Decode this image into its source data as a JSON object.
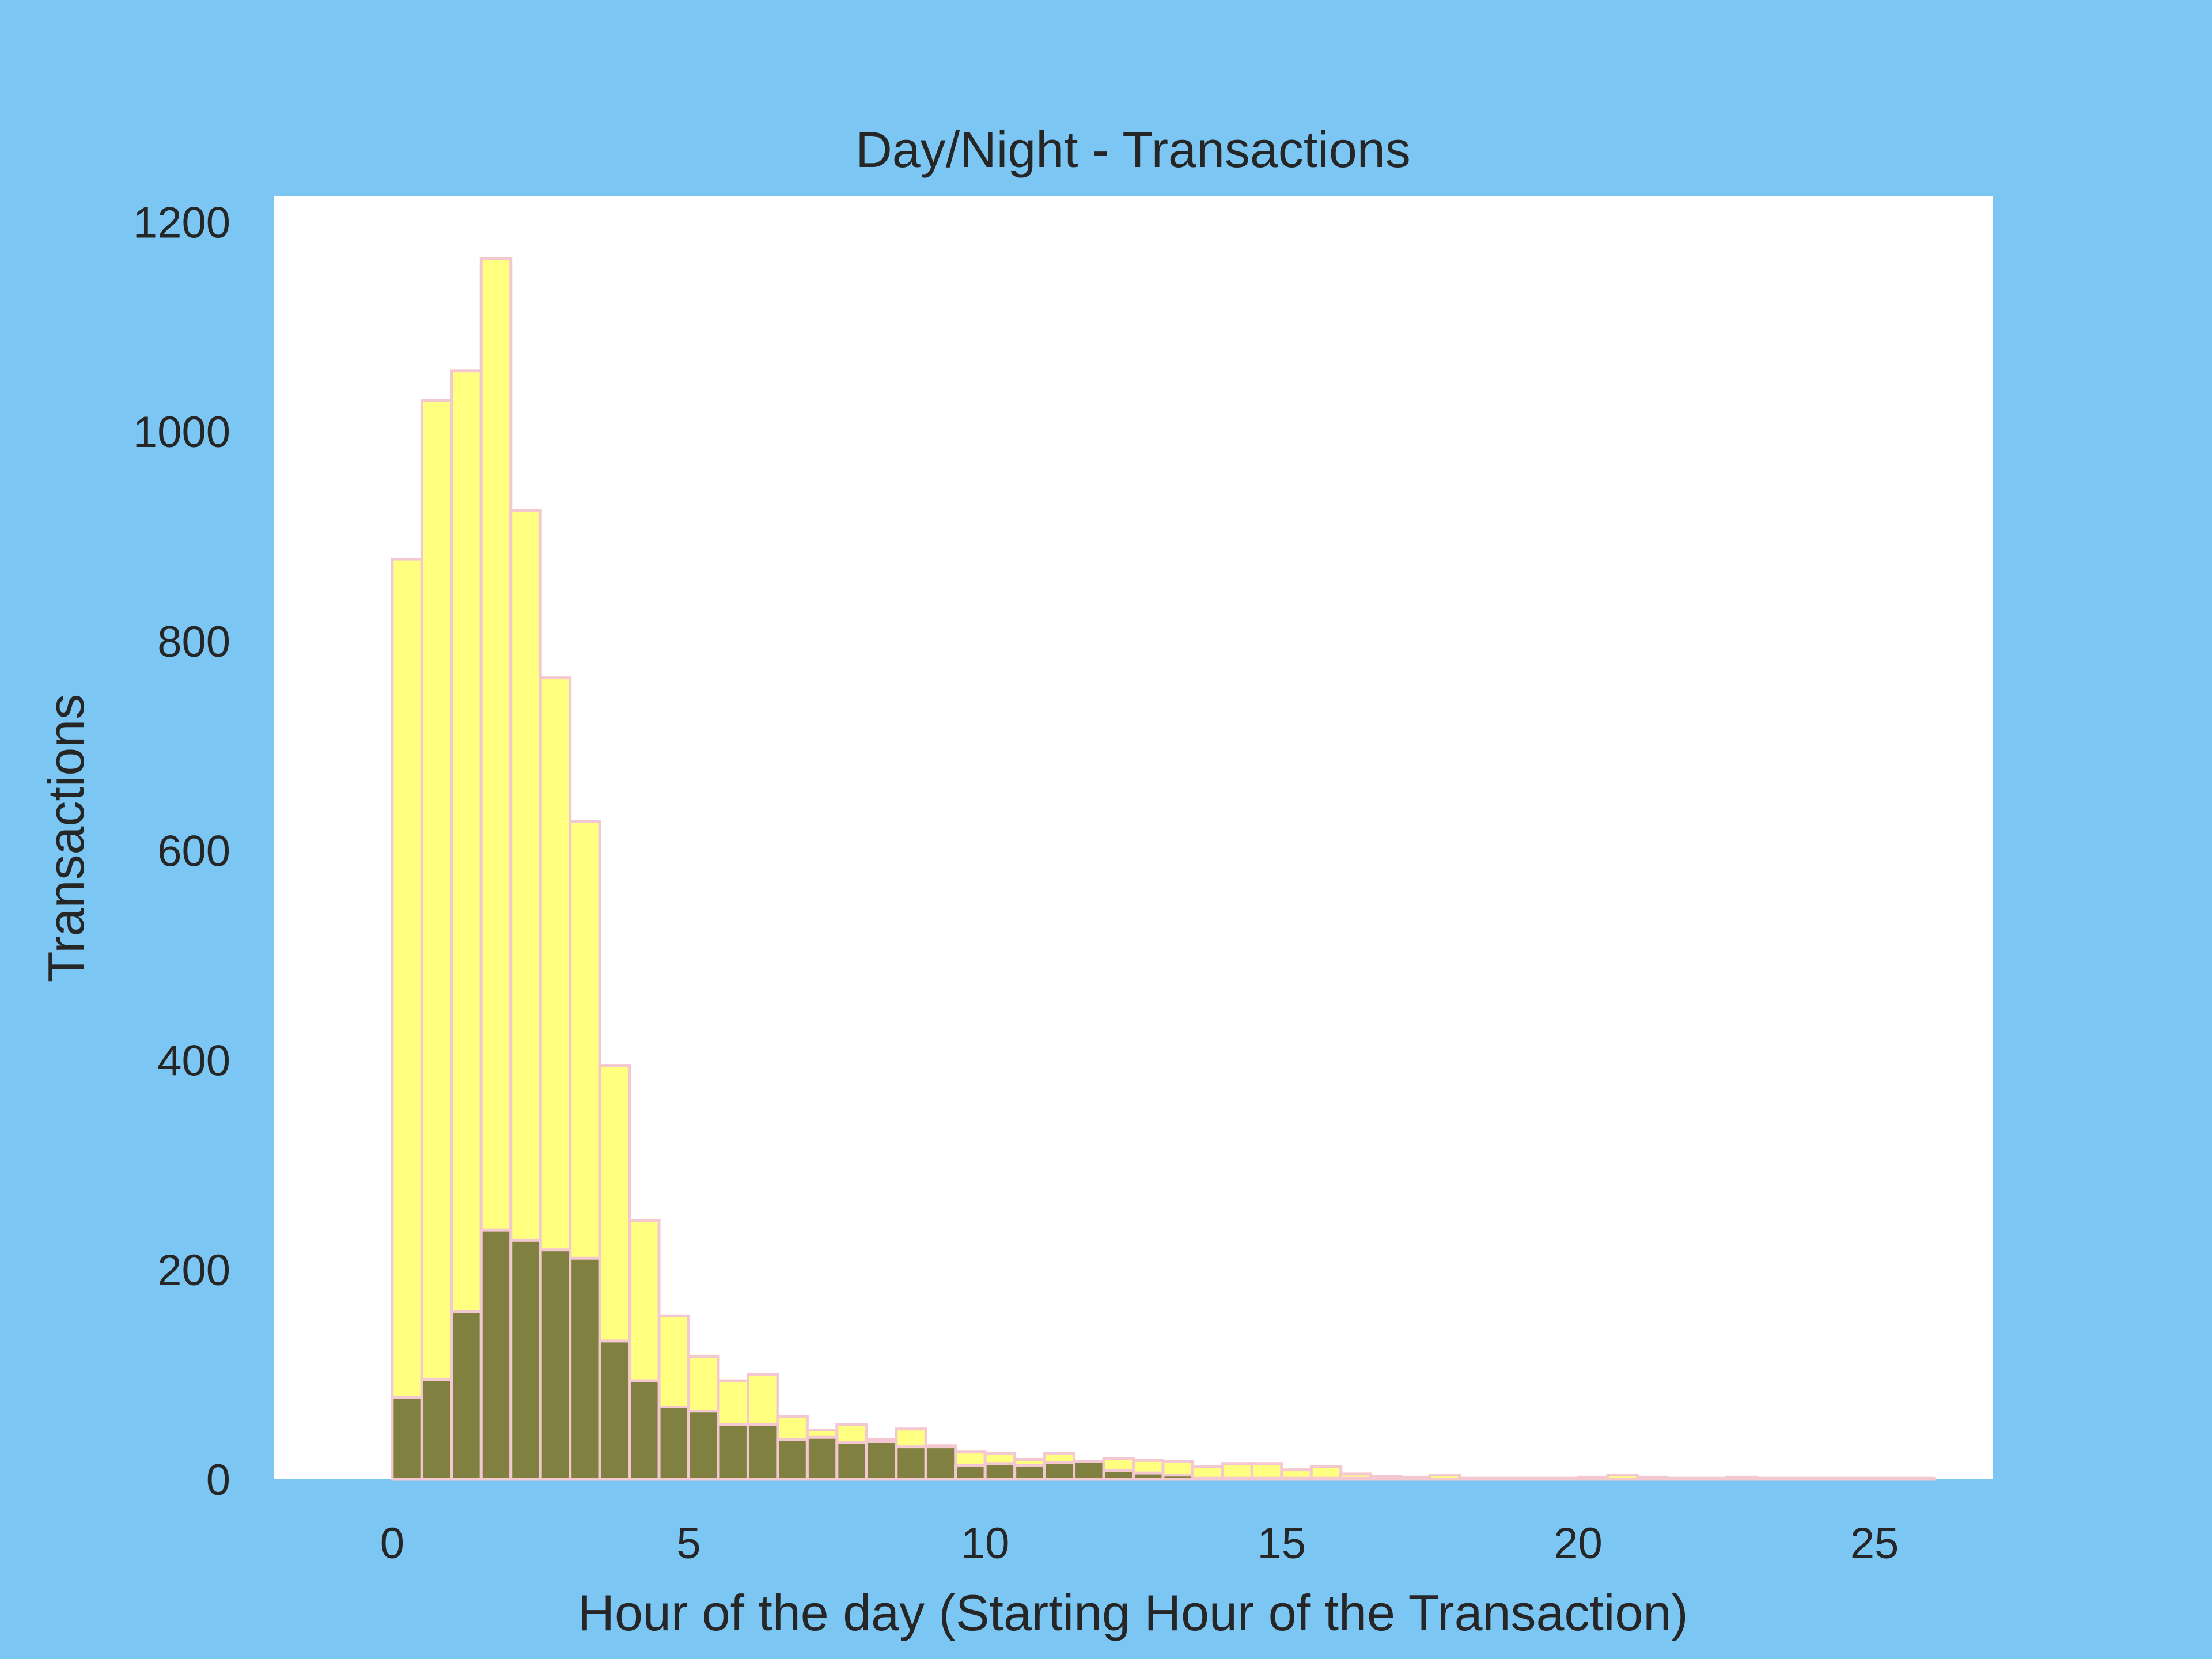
{
  "chart_data": {
    "type": "bar",
    "title": "Day/Night - Transactions",
    "xlabel": "Hour of the day (Starting Hour of the Transaction)",
    "ylabel": "Transactions",
    "xlim": [
      -2,
      27
    ],
    "ylim": [
      0,
      1225
    ],
    "xticks": [
      0,
      5,
      10,
      15,
      20,
      25
    ],
    "yticks": [
      0,
      200,
      400,
      600,
      800,
      1000,
      1200
    ],
    "grid": false,
    "bin_width": 0.5,
    "bin_start": 0,
    "series": [
      {
        "color": "#ffff80",
        "edge_color": "#f4c8d0",
        "values": [
          878,
          1030,
          1058,
          1165,
          925,
          765,
          628,
          395,
          247,
          156,
          117,
          94,
          100,
          60,
          47,
          52,
          38,
          48,
          32,
          26,
          25,
          19,
          25,
          17,
          20,
          18,
          17,
          12,
          15,
          15,
          9,
          12,
          5,
          3,
          2,
          4,
          1,
          1,
          1,
          1,
          2,
          4,
          2,
          1,
          1,
          2,
          1,
          1,
          1,
          1,
          1,
          1
        ]
      },
      {
        "color": "#808040",
        "edge_color": "#f4c8d0",
        "values": [
          78,
          95,
          160,
          238,
          228,
          219,
          211,
          132,
          94,
          69,
          65,
          52,
          52,
          38,
          40,
          35,
          36,
          31,
          31,
          13,
          15,
          13,
          16,
          17,
          8,
          6,
          4,
          1,
          1,
          1,
          1,
          1,
          1,
          0,
          0,
          0,
          0,
          0,
          0,
          0,
          0,
          0,
          0,
          0,
          0,
          0,
          0,
          0,
          0,
          0,
          0,
          0
        ]
      }
    ]
  }
}
